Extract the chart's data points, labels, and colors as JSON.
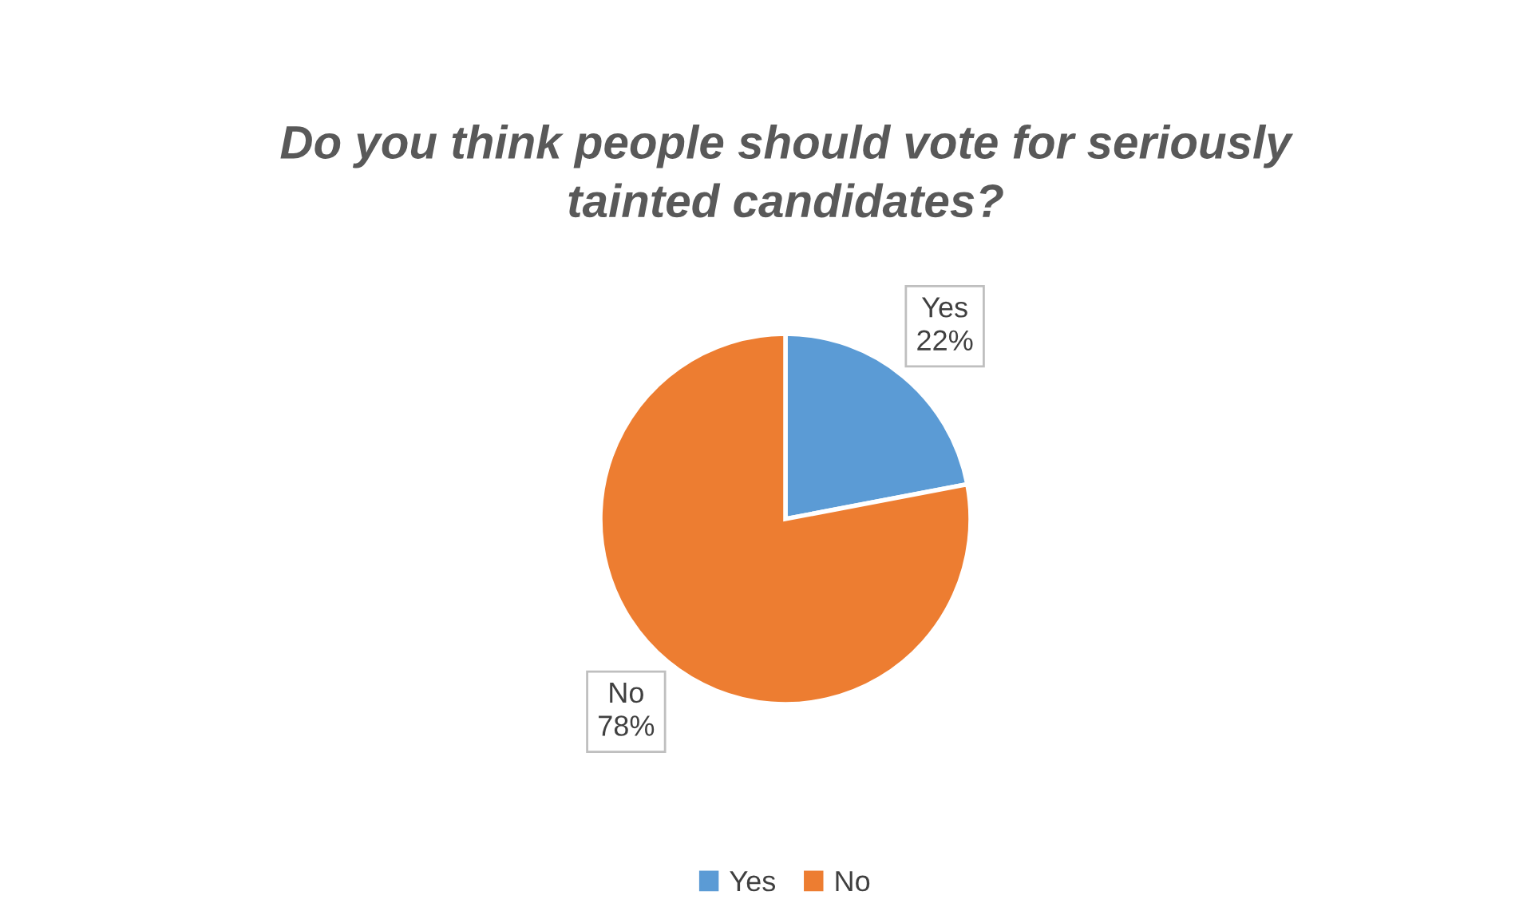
{
  "chart_data": {
    "type": "pie",
    "title": "Do you think people should vote for seriously\ntainted candidates?",
    "categories": [
      "Yes",
      "No"
    ],
    "values": [
      22,
      78
    ],
    "colors": [
      "#5b9bd5",
      "#ed7d31"
    ],
    "value_labels": [
      "Yes\n22%",
      "No\n78%"
    ],
    "legend": "bottom"
  }
}
